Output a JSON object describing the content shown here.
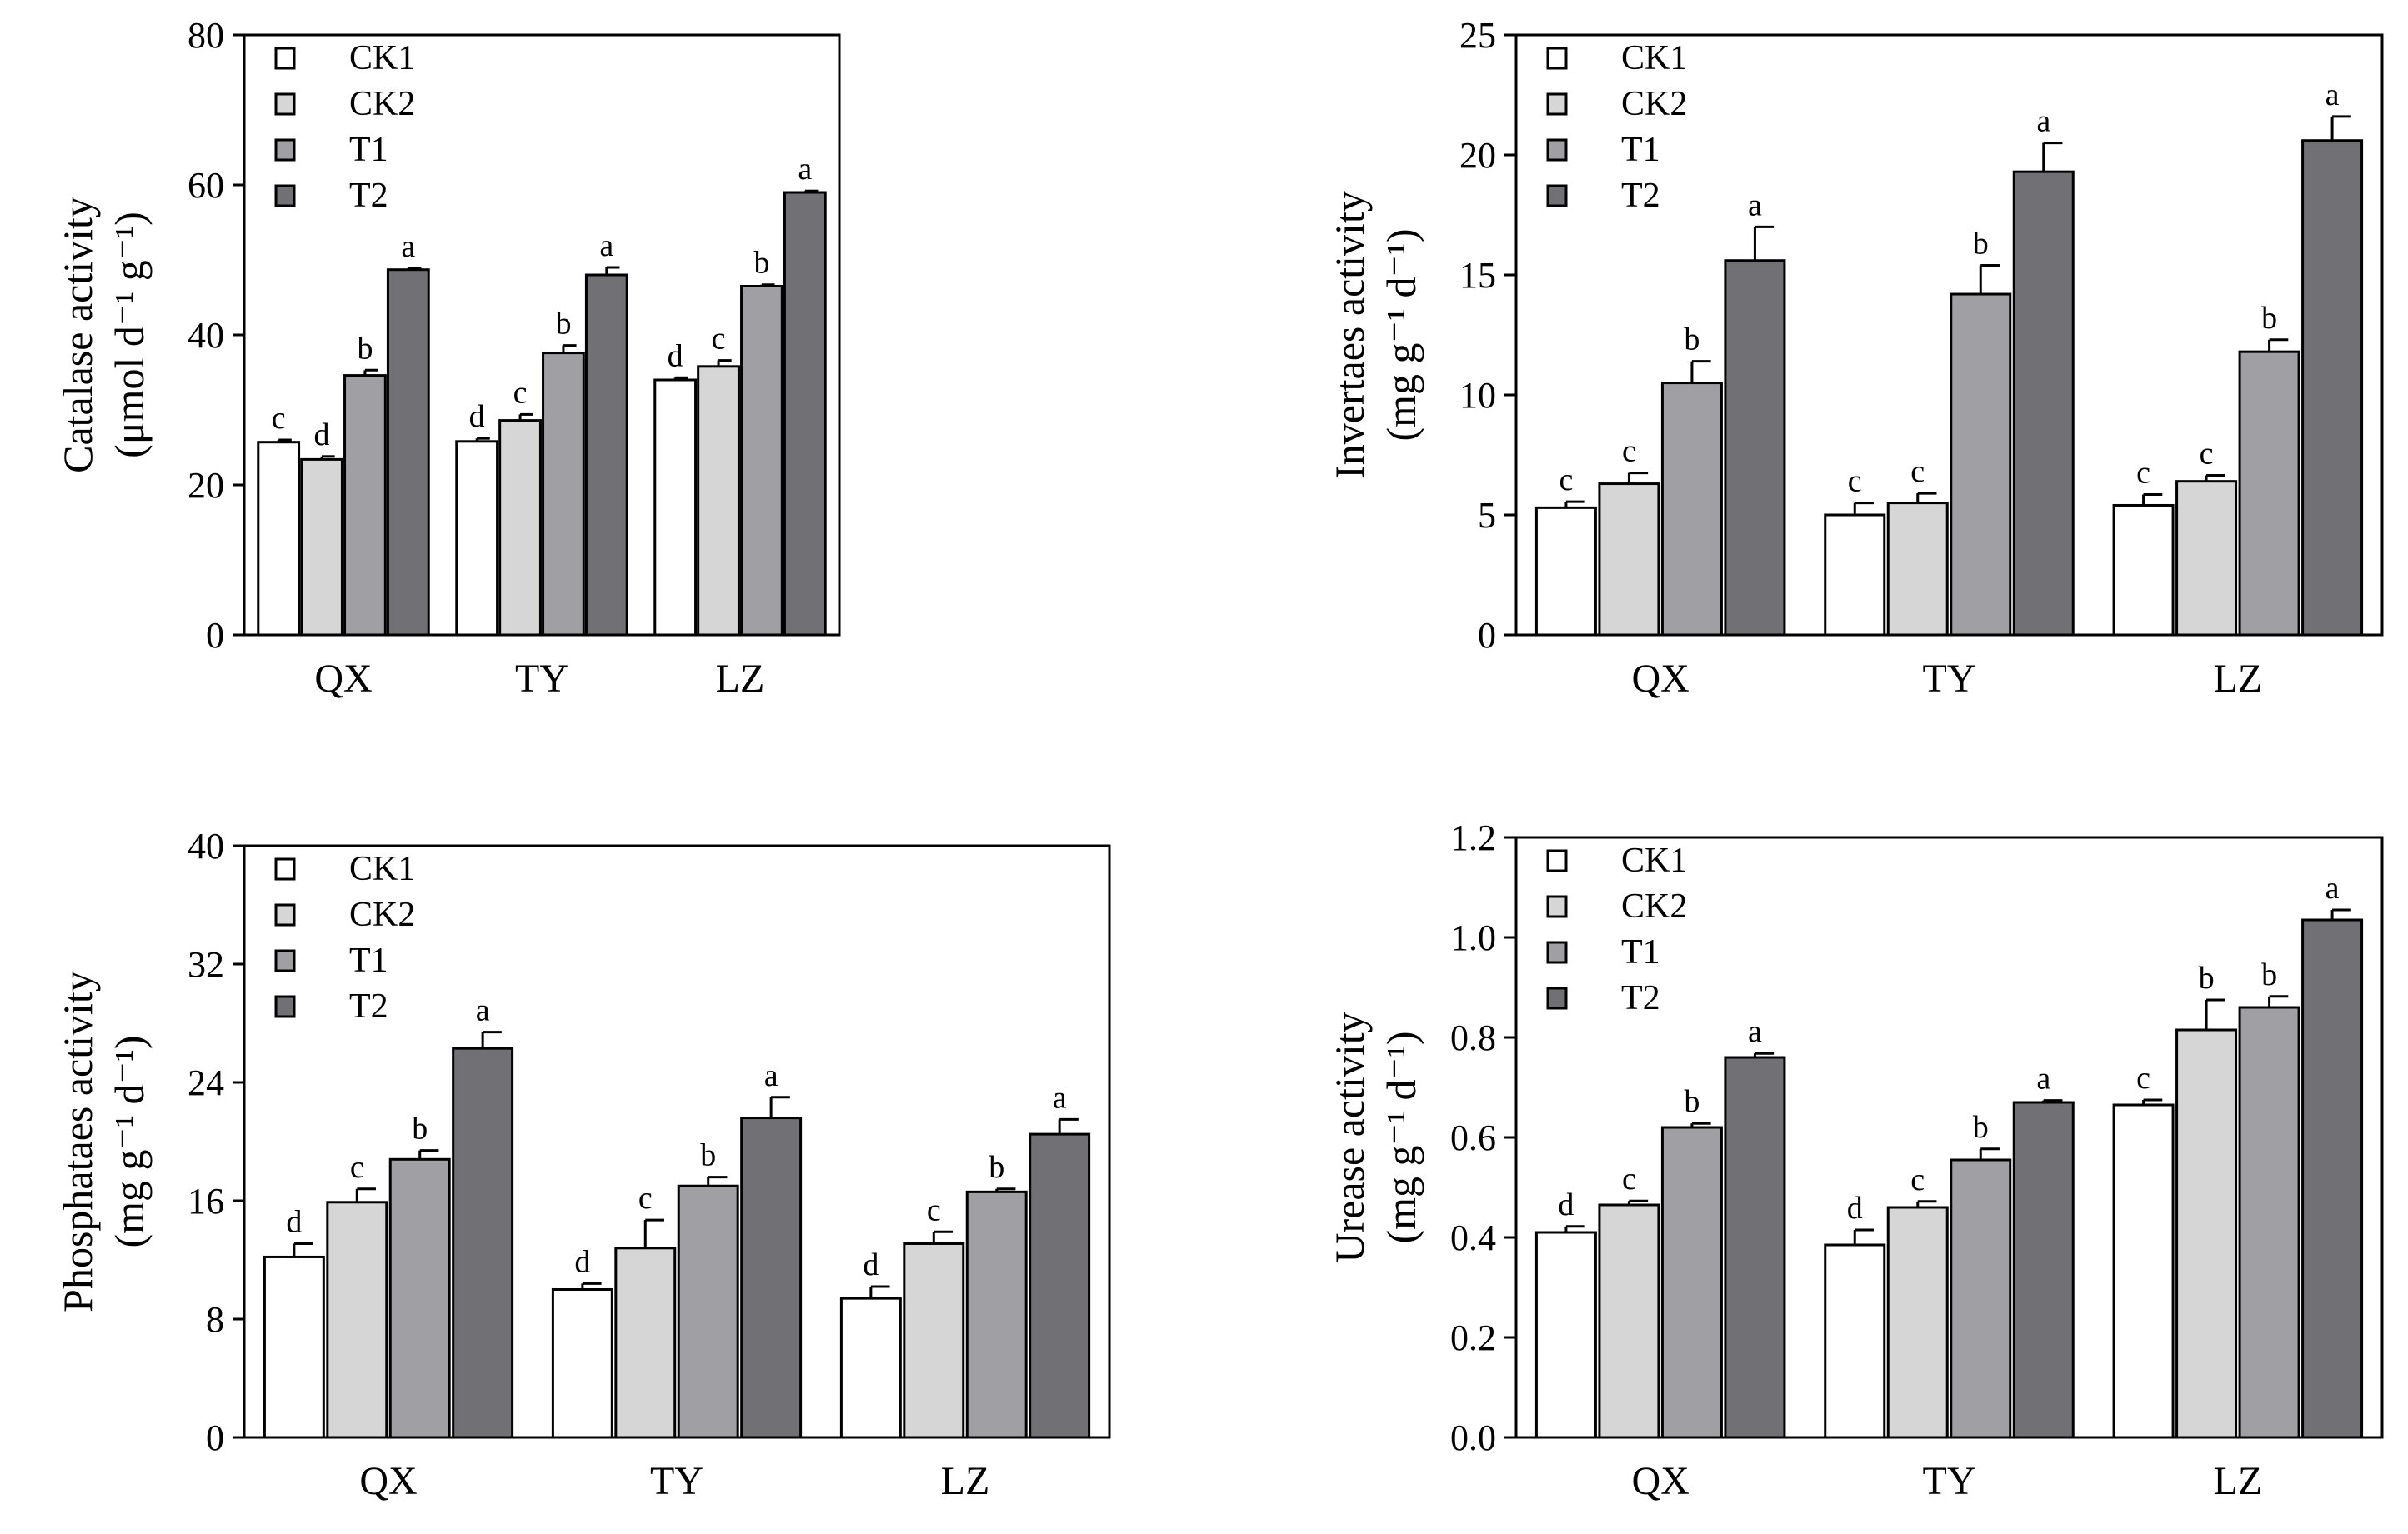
{
  "colors": {
    "CK1": "#ffffff",
    "CK2": "#d6d6d6",
    "T1": "#a0a0a4",
    "T2": "#717175",
    "stroke": "#000000"
  },
  "legend": [
    "CK1",
    "CK2",
    "T1",
    "T2"
  ],
  "chart_data": [
    {
      "type": "bar",
      "title": "",
      "xlabel": "",
      "ylabel_lines": [
        "Catalase activity",
        "(μmol d⁻¹ g⁻¹)"
      ],
      "categories": [
        "QX",
        "TY",
        "LZ"
      ],
      "ylim": [
        0,
        80
      ],
      "yticks": [
        0,
        20,
        40,
        60,
        80
      ],
      "ytick_labels": [
        "0",
        "20",
        "40",
        "60",
        "80"
      ],
      "series": [
        {
          "name": "CK1",
          "values": [
            25.7,
            25.8,
            34.0
          ],
          "errors": [
            0.3,
            0.4,
            0.3
          ],
          "letters": [
            "c",
            "d",
            "d"
          ]
        },
        {
          "name": "CK2",
          "values": [
            23.4,
            28.6,
            35.8
          ],
          "errors": [
            0.4,
            0.8,
            0.8
          ],
          "letters": [
            "d",
            "c",
            "c"
          ]
        },
        {
          "name": "T1",
          "values": [
            34.6,
            37.6,
            46.5
          ],
          "errors": [
            0.7,
            1.0,
            0.2
          ],
          "letters": [
            "b",
            "b",
            "b"
          ]
        },
        {
          "name": "T2",
          "values": [
            48.7,
            48.0,
            59.0
          ],
          "errors": [
            0.2,
            1.0,
            0.2
          ],
          "letters": [
            "a",
            "a",
            "a"
          ]
        }
      ]
    },
    {
      "type": "bar",
      "title": "",
      "xlabel": "",
      "ylabel_lines": [
        "Invertaes activity",
        "(mg g⁻¹ d⁻¹)"
      ],
      "categories": [
        "QX",
        "TY",
        "LZ"
      ],
      "ylim": [
        0,
        25
      ],
      "yticks": [
        0,
        5,
        10,
        15,
        20,
        25
      ],
      "ytick_labels": [
        "0",
        "5",
        "10",
        "15",
        "20",
        "25"
      ],
      "series": [
        {
          "name": "CK1",
          "values": [
            5.3,
            5.0,
            5.4
          ],
          "errors": [
            0.25,
            0.5,
            0.45
          ],
          "letters": [
            "c",
            "c",
            "c"
          ]
        },
        {
          "name": "CK2",
          "values": [
            6.3,
            5.5,
            6.4
          ],
          "errors": [
            0.45,
            0.4,
            0.25
          ],
          "letters": [
            "c",
            "c",
            "c"
          ]
        },
        {
          "name": "T1",
          "values": [
            10.5,
            14.2,
            11.8
          ],
          "errors": [
            0.9,
            1.2,
            0.5
          ],
          "letters": [
            "b",
            "b",
            "b"
          ]
        },
        {
          "name": "T2",
          "values": [
            15.6,
            19.3,
            20.6
          ],
          "errors": [
            1.4,
            1.2,
            1.0
          ],
          "letters": [
            "a",
            "a",
            "a"
          ]
        }
      ]
    },
    {
      "type": "bar",
      "title": "",
      "xlabel": "",
      "ylabel_lines": [
        "Phosphataes activity",
        "(mg g⁻¹ d⁻¹)"
      ],
      "categories": [
        "QX",
        "TY",
        "LZ"
      ],
      "ylim": [
        0,
        40
      ],
      "yticks": [
        0,
        8,
        16,
        24,
        32,
        40
      ],
      "ytick_labels": [
        "0",
        "8",
        "16",
        "24",
        "32",
        "40"
      ],
      "series": [
        {
          "name": "CK1",
          "values": [
            12.2,
            10.0,
            9.4
          ],
          "errors": [
            0.9,
            0.4,
            0.8
          ],
          "letters": [
            "d",
            "d",
            "d"
          ]
        },
        {
          "name": "CK2",
          "values": [
            15.9,
            12.8,
            13.1
          ],
          "errors": [
            0.9,
            1.9,
            0.8
          ],
          "letters": [
            "c",
            "c",
            "c"
          ]
        },
        {
          "name": "T1",
          "values": [
            18.8,
            17.0,
            16.6
          ],
          "errors": [
            0.6,
            0.6,
            0.2
          ],
          "letters": [
            "b",
            "b",
            "b"
          ]
        },
        {
          "name": "T2",
          "values": [
            26.3,
            21.6,
            20.5
          ],
          "errors": [
            1.1,
            1.4,
            1.0
          ],
          "letters": [
            "a",
            "a",
            "a"
          ]
        }
      ]
    },
    {
      "type": "bar",
      "title": "",
      "xlabel": "",
      "ylabel_lines": [
        "Urease activity",
        "(mg g⁻¹ d⁻¹)"
      ],
      "categories": [
        "QX",
        "TY",
        "LZ"
      ],
      "ylim": [
        0,
        1.2
      ],
      "yticks": [
        0,
        0.2,
        0.4,
        0.6,
        0.8,
        1.0,
        1.2
      ],
      "ytick_labels": [
        "0.0",
        "0.2",
        "0.4",
        "0.6",
        "0.8",
        "1.0",
        "1.2"
      ],
      "series": [
        {
          "name": "CK1",
          "values": [
            0.41,
            0.385,
            0.665
          ],
          "errors": [
            0.012,
            0.03,
            0.01
          ],
          "letters": [
            "d",
            "d",
            "c"
          ]
        },
        {
          "name": "CK2",
          "values": [
            0.465,
            0.46,
            0.815
          ],
          "errors": [
            0.008,
            0.012,
            0.06
          ],
          "letters": [
            "c",
            "c",
            "b"
          ]
        },
        {
          "name": "T1",
          "values": [
            0.62,
            0.555,
            0.86
          ],
          "errors": [
            0.008,
            0.022,
            0.022
          ],
          "letters": [
            "b",
            "b",
            "b"
          ]
        },
        {
          "name": "T2",
          "values": [
            0.76,
            0.67,
            1.035
          ],
          "errors": [
            0.008,
            0.004,
            0.02
          ],
          "letters": [
            "a",
            "a",
            "a"
          ]
        }
      ]
    }
  ]
}
